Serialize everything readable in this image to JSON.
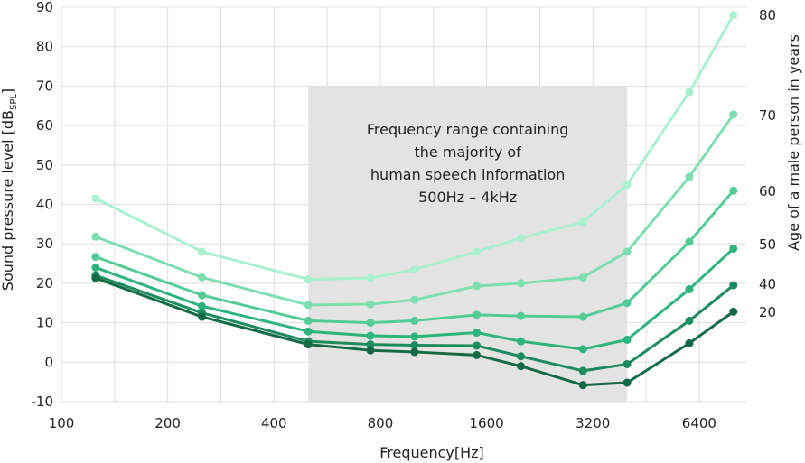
{
  "chart_data": {
    "type": "line",
    "xscale": "log2",
    "x": [
      125,
      250,
      500,
      750,
      1000,
      1500,
      2000,
      3000,
      4000,
      6000,
      8000
    ],
    "xticks": [
      "100",
      "200",
      "400",
      "800",
      "1600",
      "3200",
      "6400"
    ],
    "xlabel": "Frequency[Hz]",
    "ylabel_main": "Sound pressure level [dB",
    "ylabel_sub": "SPL",
    "ylabel_end": "]",
    "ylim": [
      -10,
      90
    ],
    "yticks": [
      "-10",
      "0",
      "10",
      "20",
      "30",
      "40",
      "50",
      "60",
      "70",
      "80",
      "90"
    ],
    "y2label": "Age of a male person in years",
    "grid": true,
    "highlight": {
      "from": 500,
      "to": 4000,
      "lines": [
        "Frequency range containing",
        "the majority of",
        "human speech information",
        "500Hz – 4kHz"
      ]
    },
    "series": [
      {
        "name": "80",
        "color": "#a9f0cc",
        "values": [
          41.5,
          28,
          21,
          21.3,
          23.5,
          28,
          31.5,
          35.5,
          45,
          68.5,
          88
        ]
      },
      {
        "name": "70",
        "color": "#7ddeb0",
        "values": [
          31.8,
          21.5,
          14.5,
          14.7,
          15.8,
          19.3,
          20,
          21.5,
          28,
          47,
          62.8
        ]
      },
      {
        "name": "60",
        "color": "#52cc94",
        "values": [
          26.7,
          17,
          10.5,
          10,
          10.5,
          12,
          11.7,
          11.5,
          15,
          30.5,
          43.5
        ]
      },
      {
        "name": "50",
        "color": "#2cb47c",
        "values": [
          24,
          14.2,
          7.8,
          6.7,
          6.5,
          7.5,
          5.3,
          3.3,
          5.7,
          18.5,
          28.8
        ]
      },
      {
        "name": "40",
        "color": "#1c8b5e",
        "values": [
          22,
          12.5,
          5.3,
          4.5,
          4.3,
          4.2,
          1.5,
          -2.2,
          -0.5,
          10.5,
          19.5
        ]
      },
      {
        "name": "20",
        "color": "#156a46",
        "values": [
          21.3,
          11.5,
          4.5,
          3,
          2.6,
          1.8,
          -1,
          -5.8,
          -5.2,
          4.8,
          12.8
        ]
      }
    ]
  }
}
